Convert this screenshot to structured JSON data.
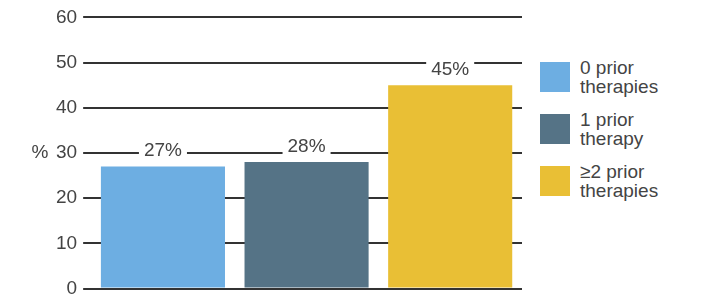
{
  "chart_data": {
    "type": "bar",
    "y_label": "%",
    "categories": [
      "0 prior therapies",
      "1 prior therapy",
      "≥2 prior therapies"
    ],
    "values": [
      27,
      28,
      45
    ],
    "value_labels": [
      "27%",
      "28%",
      "45%"
    ],
    "colors": [
      "#6daee2",
      "#557386",
      "#e9bf35"
    ],
    "ylim": [
      0,
      60
    ],
    "yticks": [
      0,
      10,
      20,
      30,
      40,
      50,
      60
    ],
    "grid": true,
    "legend": "right",
    "data_labels": true,
    "tick_labels": "y"
  }
}
